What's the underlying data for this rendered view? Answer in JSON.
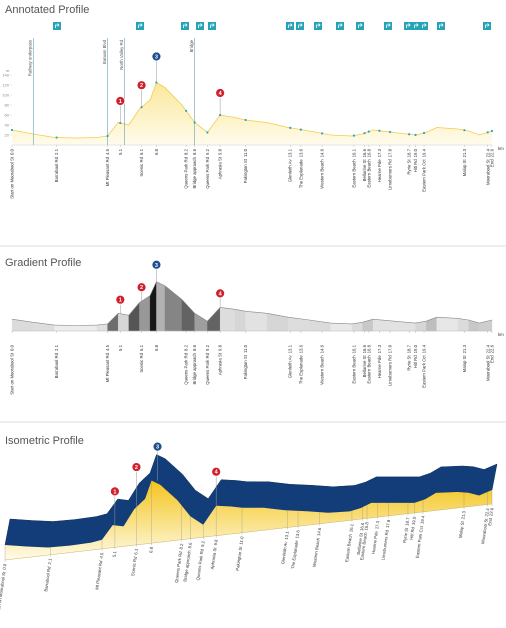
{
  "profile": {
    "x": [
      0,
      1,
      2,
      3,
      4,
      4.5,
      5,
      5.5,
      6,
      6.5,
      6.8,
      7.2,
      8,
      8.6,
      9.2,
      9.8,
      10.5,
      11,
      12,
      13,
      14,
      15,
      16,
      16.5,
      17,
      18,
      19,
      19.5,
      20,
      21,
      21.5,
      22,
      22.6
    ],
    "values": [
      30,
      22,
      15,
      14,
      15,
      18,
      45,
      40,
      72,
      90,
      125,
      115,
      80,
      45,
      25,
      60,
      55,
      50,
      45,
      35,
      28,
      20,
      18,
      22,
      30,
      25,
      20,
      25,
      35,
      32,
      28,
      20,
      28
    ],
    "xlim": [
      0,
      22.6
    ],
    "ylim": [
      0,
      160
    ],
    "yticks": [
      20,
      40,
      60,
      80,
      100,
      120,
      140
    ],
    "y_label": "m",
    "x_unit": "km",
    "locations": [
      {
        "name": "Start on Moorabool St",
        "km": {
          "value": 0,
          "label": "0.0"
        }
      },
      {
        "name": "Barrabool Rd",
        "km": {
          "value": 2.1,
          "label": "2.1"
        }
      },
      {
        "name": "Mt Pleasant Rd",
        "km": {
          "value": 4.5,
          "label": "4.5"
        }
      },
      {
        "km": {
          "value": 5.1,
          "label": "5.1"
        }
      },
      {
        "name": "Scenic Rd",
        "km": {
          "value": 6.1,
          "label": "6.1"
        }
      },
      {
        "km": {
          "value": 6.8,
          "label": "6.8"
        }
      },
      {
        "name": "Queens Park Rd",
        "km": {
          "value": 8.2,
          "label": "8.2"
        }
      },
      {
        "name": "Bridge approach",
        "km": {
          "value": 8.6,
          "label": "8.6"
        }
      },
      {
        "name": "Queens Park Rd",
        "km": {
          "value": 9.2,
          "label": "9.2"
        }
      },
      {
        "name": "Aphrasia St",
        "km": {
          "value": 9.8,
          "label": "9.8"
        }
      },
      {
        "name": "Pakington St",
        "km": {
          "value": 11,
          "label": "11.0"
        }
      },
      {
        "name": "Glenleith Av",
        "km": {
          "value": 13.1,
          "label": "13.1"
        }
      },
      {
        "name": "The Esplanade",
        "km": {
          "value": 13.6,
          "label": "13.6"
        }
      },
      {
        "name": "Western Beach",
        "km": {
          "value": 14.6,
          "label": "14.6"
        }
      },
      {
        "name": "Eastern Beach",
        "km": {
          "value": 16.1,
          "label": "16.1"
        }
      },
      {
        "name": "Bellarine St",
        "km": {
          "value": 16.6,
          "label": "16.6"
        }
      },
      {
        "name": "Eastern Beach",
        "km": {
          "value": 16.8,
          "label": "16.8"
        }
      },
      {
        "name": "Hearne Pde",
        "km": {
          "value": 17.3,
          "label": "17.3"
        }
      },
      {
        "name": "Limeburners Rd",
        "km": {
          "value": 17.8,
          "label": "17.8"
        }
      },
      {
        "name": "Ryrie St",
        "km": {
          "value": 18.7,
          "label": "18.7"
        }
      },
      {
        "name": "Hitl Rd",
        "km": {
          "value": 19,
          "label": "19.0"
        }
      },
      {
        "name": "Eastern Park Cct",
        "km": {
          "value": 19.4,
          "label": "19.4"
        }
      },
      {
        "name": "Malop St",
        "km": {
          "value": 21.3,
          "label": "21.3"
        }
      },
      {
        "name": "Moorabool St",
        "km": {
          "value": 22.4,
          "label": "22.4"
        }
      },
      {
        "name": "End",
        "km": {
          "value": 22.6,
          "label": "22.6"
        }
      }
    ],
    "markers": [
      {
        "label": "1",
        "x": 5.1,
        "color": "#d0202e"
      },
      {
        "label": "2",
        "x": 6.1,
        "color": "#d0202e"
      },
      {
        "label": "3",
        "x": 6.8,
        "color": "#1f4e8c"
      },
      {
        "label": "4",
        "x": 9.8,
        "color": "#d0202e"
      }
    ],
    "annotations": [
      {
        "label": "Railway underpass",
        "x": 1.0
      },
      {
        "label": "Barwon Blvd",
        "x": 4.5
      },
      {
        "label": "North Valley Rd",
        "x": 5.3
      },
      {
        "label": "Bridge",
        "x": 8.6
      }
    ]
  },
  "chart_data": [
    {
      "type": "annotated",
      "title": "Annotated Profile"
    },
    {
      "type": "gradient",
      "title": "Gradient Profile"
    },
    {
      "type": "isometric",
      "title": "Isometric Profile"
    }
  ]
}
